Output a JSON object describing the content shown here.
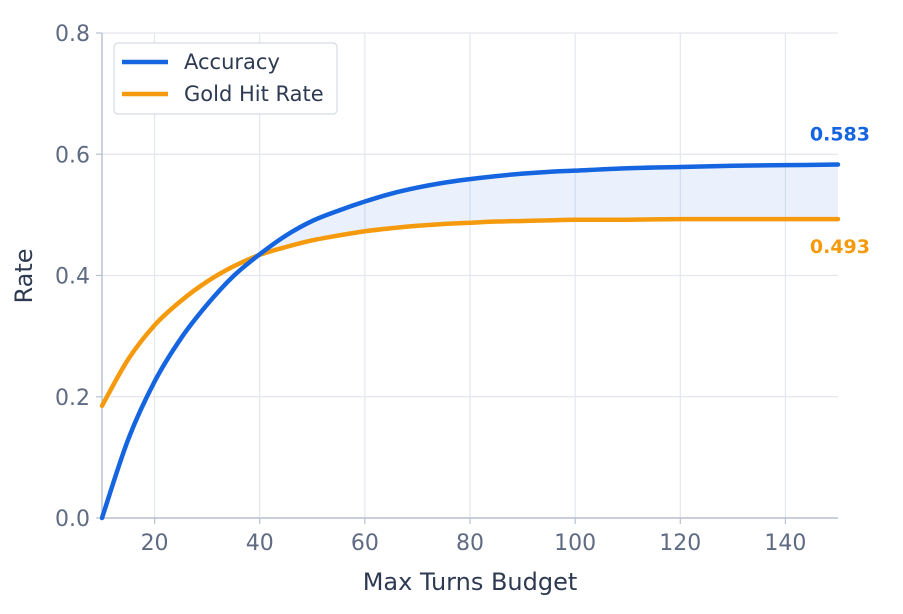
{
  "chart_data": {
    "type": "line",
    "xlabel": "Max Turns Budget",
    "ylabel": "Rate",
    "xlim": [
      10,
      150
    ],
    "ylim": [
      0,
      0.8
    ],
    "xticks": [
      "20",
      "40",
      "60",
      "80",
      "100",
      "120",
      "140"
    ],
    "yticks": [
      "0.0",
      "0.2",
      "0.4",
      "0.6",
      "0.8"
    ],
    "grid": true,
    "legend_position": "top-left",
    "shaded_region_between_series": true,
    "x": [
      10,
      15,
      20,
      25,
      30,
      35,
      40,
      45,
      50,
      55,
      60,
      65,
      70,
      75,
      80,
      85,
      90,
      95,
      100,
      110,
      120,
      130,
      140,
      150
    ],
    "series": [
      {
        "name": "Accuracy",
        "color": "#1565e0",
        "values": [
          0.0,
          0.13,
          0.225,
          0.296,
          0.352,
          0.399,
          0.435,
          0.466,
          0.49,
          0.507,
          0.522,
          0.535,
          0.545,
          0.553,
          0.559,
          0.564,
          0.568,
          0.571,
          0.573,
          0.577,
          0.579,
          0.581,
          0.582,
          0.583
        ],
        "end_label": "0.583"
      },
      {
        "name": "Gold Hit Rate",
        "color": "#f59a0c",
        "values": [
          0.185,
          0.262,
          0.318,
          0.358,
          0.39,
          0.415,
          0.434,
          0.447,
          0.458,
          0.466,
          0.473,
          0.478,
          0.482,
          0.485,
          0.487,
          0.489,
          0.49,
          0.491,
          0.492,
          0.492,
          0.493,
          0.493,
          0.493,
          0.493
        ],
        "end_label": "0.493"
      }
    ]
  }
}
